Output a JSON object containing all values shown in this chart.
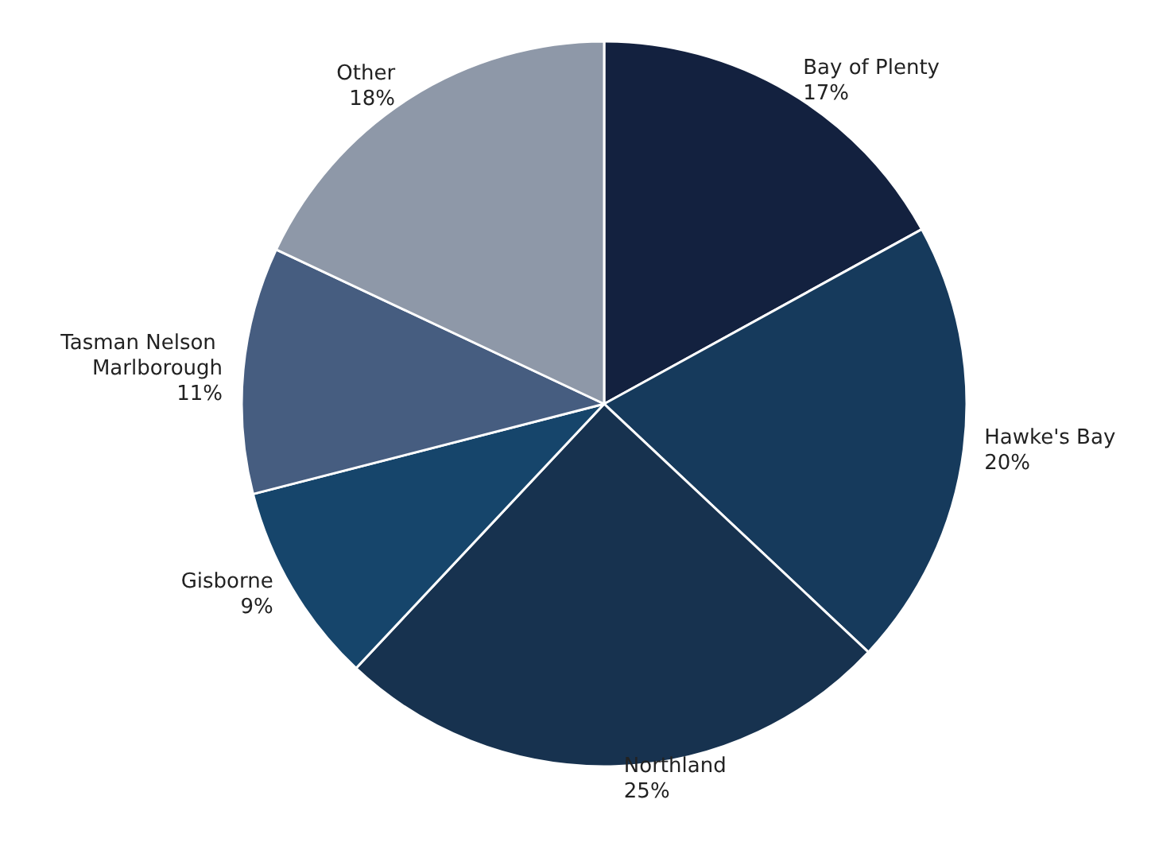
{
  "chart_data": {
    "type": "pie",
    "categories": [
      "Bay of Plenty",
      "Hawke's Bay",
      "Northland",
      "Gisborne",
      "Tasman Nelson Marlborough",
      "Other"
    ],
    "values": [
      17,
      20,
      25,
      9,
      11,
      18
    ],
    "value_labels": [
      "17%",
      "20%",
      "25%",
      "9%",
      "11%",
      "18%"
    ],
    "colors": [
      "#13213f",
      "#163a5c",
      "#17324f",
      "#16456b",
      "#465d80",
      "#8e98a8"
    ]
  }
}
